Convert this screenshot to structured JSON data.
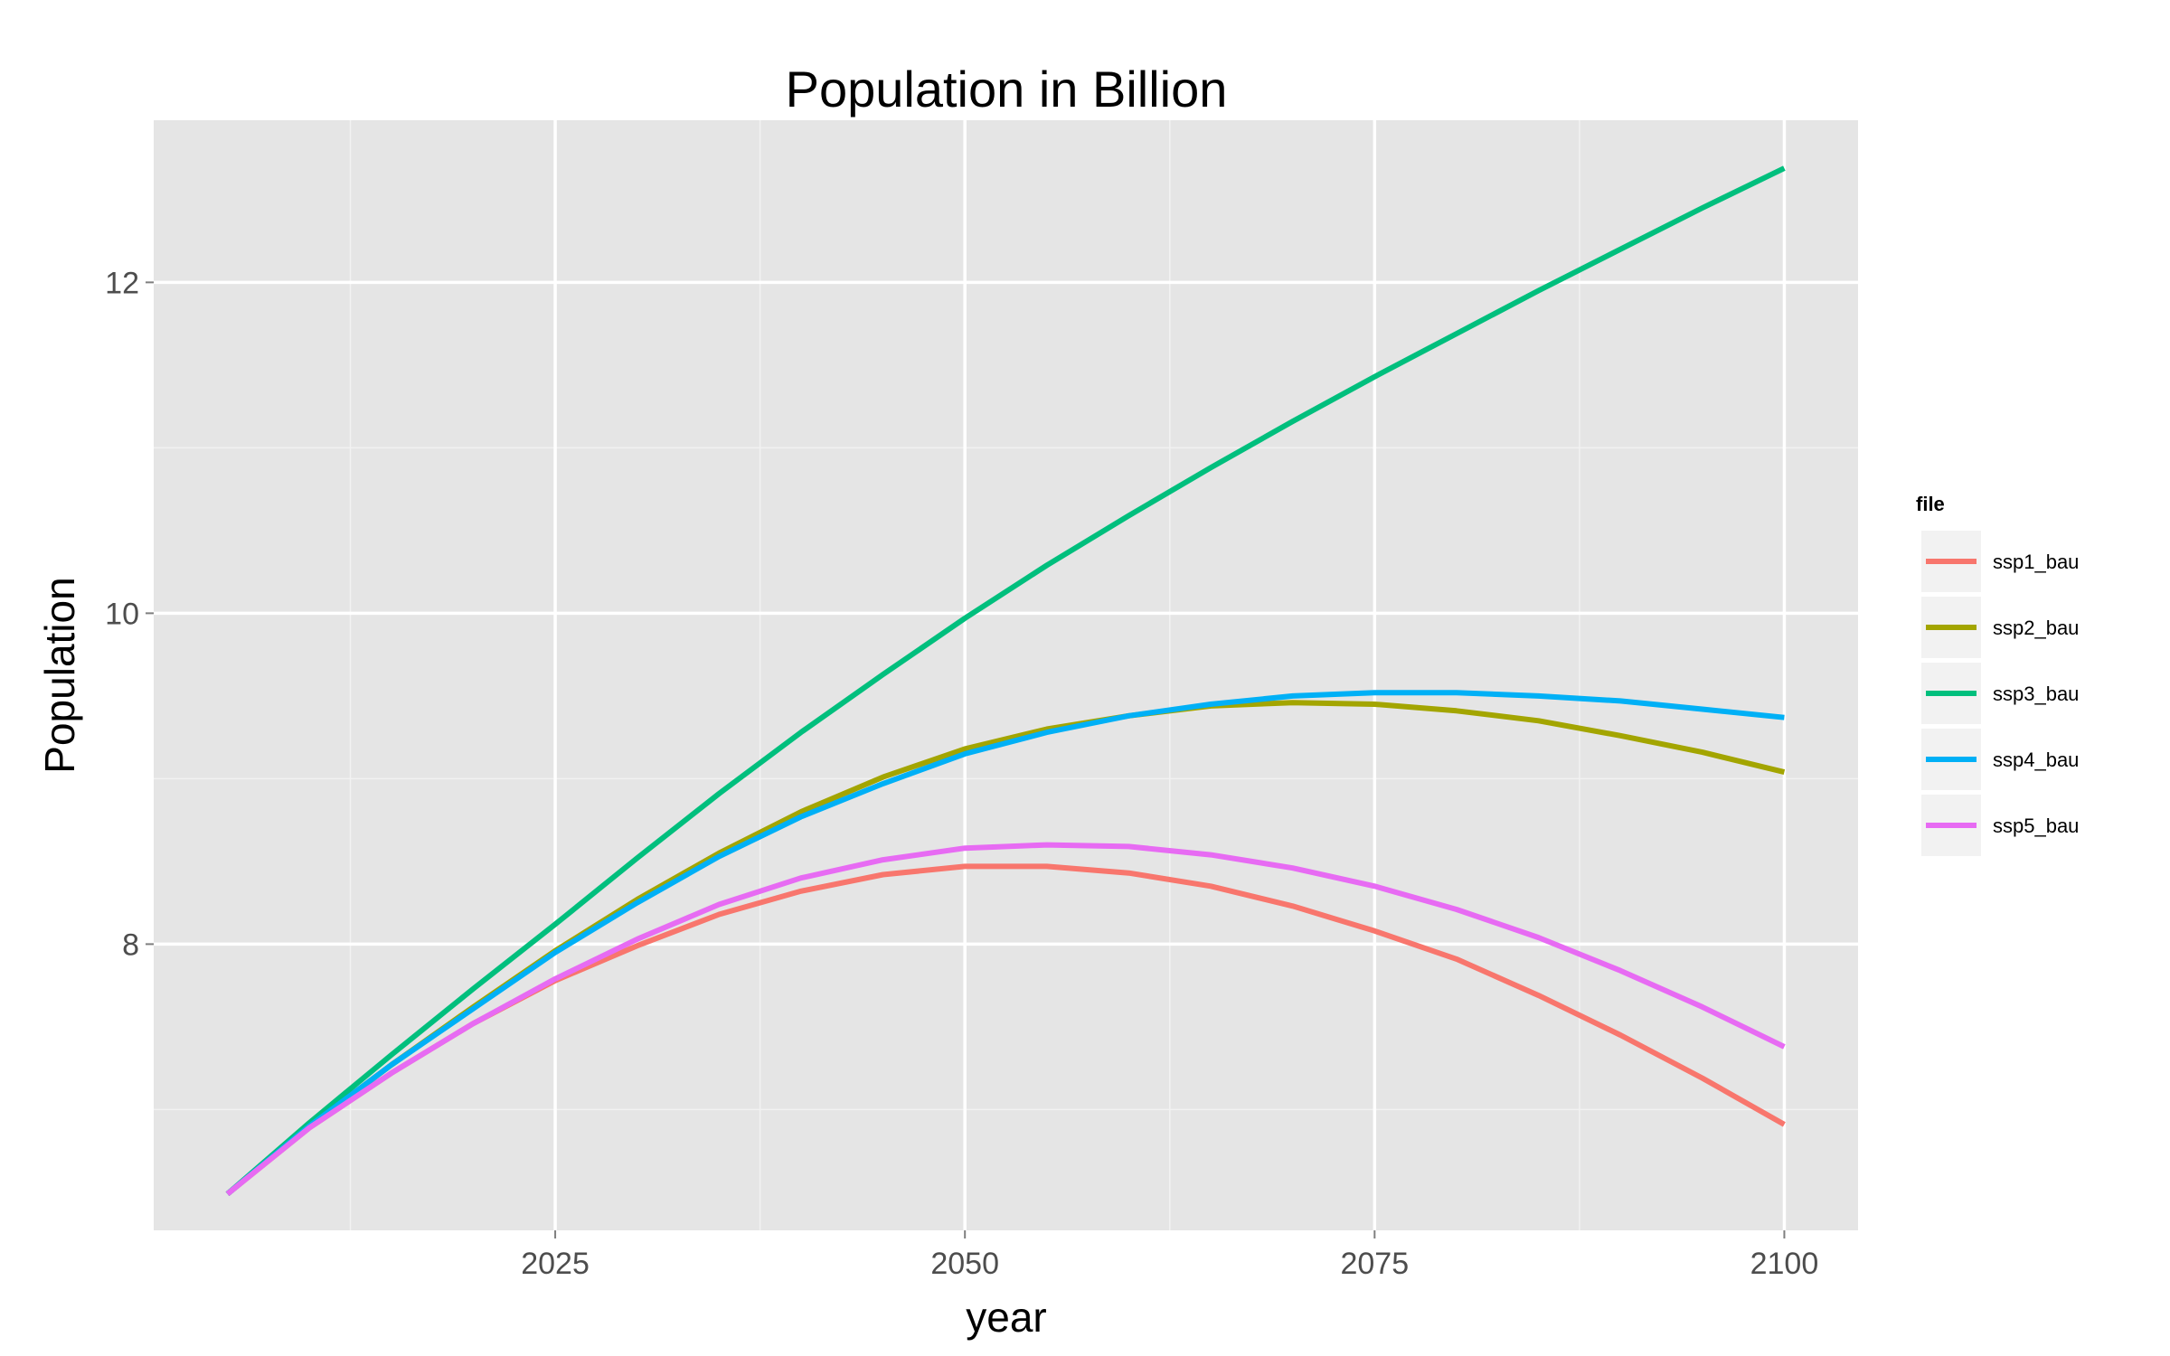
{
  "chart_data": {
    "type": "line",
    "title": "Population in Billion",
    "xlabel": "year",
    "ylabel": "Population",
    "xlim": [
      2000.5,
      2104.5
    ],
    "ylim": [
      6.27,
      12.98
    ],
    "x_ticks_major": [
      2025,
      2050,
      2075,
      2100
    ],
    "x_ticks_minor": [
      2012.5,
      2037.5,
      2062.5,
      2087.5
    ],
    "y_ticks_major": [
      8,
      10,
      12
    ],
    "y_ticks_minor": [
      7,
      9,
      11
    ],
    "x_tick_labels": [
      "2025",
      "2050",
      "2075",
      "2100"
    ],
    "y_tick_labels": [
      "8",
      "10",
      "12"
    ],
    "grid": true,
    "panel_background": "#e5e5e5",
    "legend_title": "file",
    "legend_position": "right",
    "x": [
      2005,
      2010,
      2015,
      2020,
      2025,
      2030,
      2035,
      2040,
      2045,
      2050,
      2055,
      2060,
      2065,
      2070,
      2075,
      2080,
      2085,
      2090,
      2095,
      2100
    ],
    "series": [
      {
        "name": "ssp1_bau",
        "color": "#F8766D",
        "values": [
          6.49,
          6.89,
          7.22,
          7.52,
          7.78,
          7.99,
          8.18,
          8.32,
          8.42,
          8.47,
          8.47,
          8.43,
          8.35,
          8.23,
          8.08,
          7.91,
          7.69,
          7.45,
          7.19,
          6.91
        ]
      },
      {
        "name": "ssp2_bau",
        "color": "#A3A500",
        "values": [
          6.49,
          6.9,
          7.27,
          7.62,
          7.96,
          8.27,
          8.55,
          8.8,
          9.01,
          9.18,
          9.3,
          9.38,
          9.44,
          9.46,
          9.45,
          9.41,
          9.35,
          9.26,
          9.16,
          9.04
        ]
      },
      {
        "name": "ssp3_bau",
        "color": "#00BF7D",
        "values": [
          6.49,
          6.92,
          7.33,
          7.73,
          8.12,
          8.52,
          8.91,
          9.28,
          9.63,
          9.97,
          10.29,
          10.59,
          10.88,
          11.16,
          11.43,
          11.69,
          11.95,
          12.2,
          12.45,
          12.69
        ]
      },
      {
        "name": "ssp4_bau",
        "color": "#00B0F6",
        "values": [
          6.49,
          6.9,
          7.27,
          7.61,
          7.95,
          8.25,
          8.53,
          8.77,
          8.97,
          9.15,
          9.28,
          9.38,
          9.45,
          9.5,
          9.52,
          9.52,
          9.5,
          9.47,
          9.42,
          9.37
        ]
      },
      {
        "name": "ssp5_bau",
        "color": "#E76BF3",
        "values": [
          6.49,
          6.89,
          7.22,
          7.52,
          7.79,
          8.03,
          8.24,
          8.4,
          8.51,
          8.58,
          8.6,
          8.59,
          8.54,
          8.46,
          8.35,
          8.21,
          8.04,
          7.84,
          7.62,
          7.38
        ]
      }
    ]
  }
}
